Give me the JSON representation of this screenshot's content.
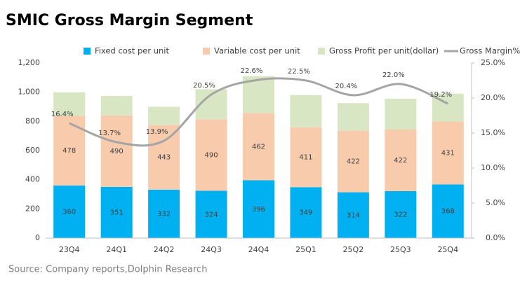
{
  "chart_data": {
    "type": "bar",
    "stacked": true,
    "title": "SMIC Gross Margin Segment",
    "source": "Source: Company reports,Dolphin Research",
    "categories": [
      "23Q4",
      "24Q1",
      "24Q2",
      "24Q3",
      "24Q4",
      "25Q1",
      "25Q2",
      "25Q3",
      "25Q4"
    ],
    "series": [
      {
        "name": "Fixed cost per unit",
        "color": "#00b0f0",
        "values": [
          360,
          351,
          332,
          324,
          396,
          349,
          314,
          322,
          368
        ]
      },
      {
        "name": "Variable cost per unit",
        "color": "#f8cbad",
        "values": [
          478,
          490,
          443,
          490,
          462,
          411,
          422,
          422,
          431
        ]
      },
      {
        "name": "Gross Profit per unit(dollar)",
        "color": "#d8e6c3",
        "values": [
          162,
          134,
          125,
          206,
          252,
          220,
          189,
          211,
          191
        ]
      },
      {
        "name": "Gross Margin%",
        "color": "#a5a5a5",
        "type": "line",
        "axis": "y2",
        "values": [
          16.4,
          13.7,
          13.9,
          20.5,
          22.6,
          22.5,
          20.4,
          22.0,
          19.2
        ],
        "value_labels": [
          "16.4%",
          "13.7%",
          "13.9%",
          "20.5%",
          "22.6%",
          "22.5%",
          "20.4%",
          "22.0%",
          "19.2%"
        ]
      }
    ],
    "ylim": [
      0,
      1200
    ],
    "yticks": [
      0,
      200,
      400,
      600,
      800,
      {
        "value": 1000,
        "label": "1,000"
      },
      {
        "value": 1200,
        "label": "1,200"
      }
    ],
    "y2lim": [
      0,
      25
    ],
    "y2ticks": [
      {
        "value": 0,
        "label": "0.0%"
      },
      {
        "value": 5,
        "label": "5.0%"
      },
      {
        "value": 10,
        "label": "10.0%"
      },
      {
        "value": 15,
        "label": "15.0%"
      },
      {
        "value": 20,
        "label": "20.0%"
      },
      {
        "value": 25,
        "label": "25.0%"
      }
    ],
    "grid": false
  }
}
